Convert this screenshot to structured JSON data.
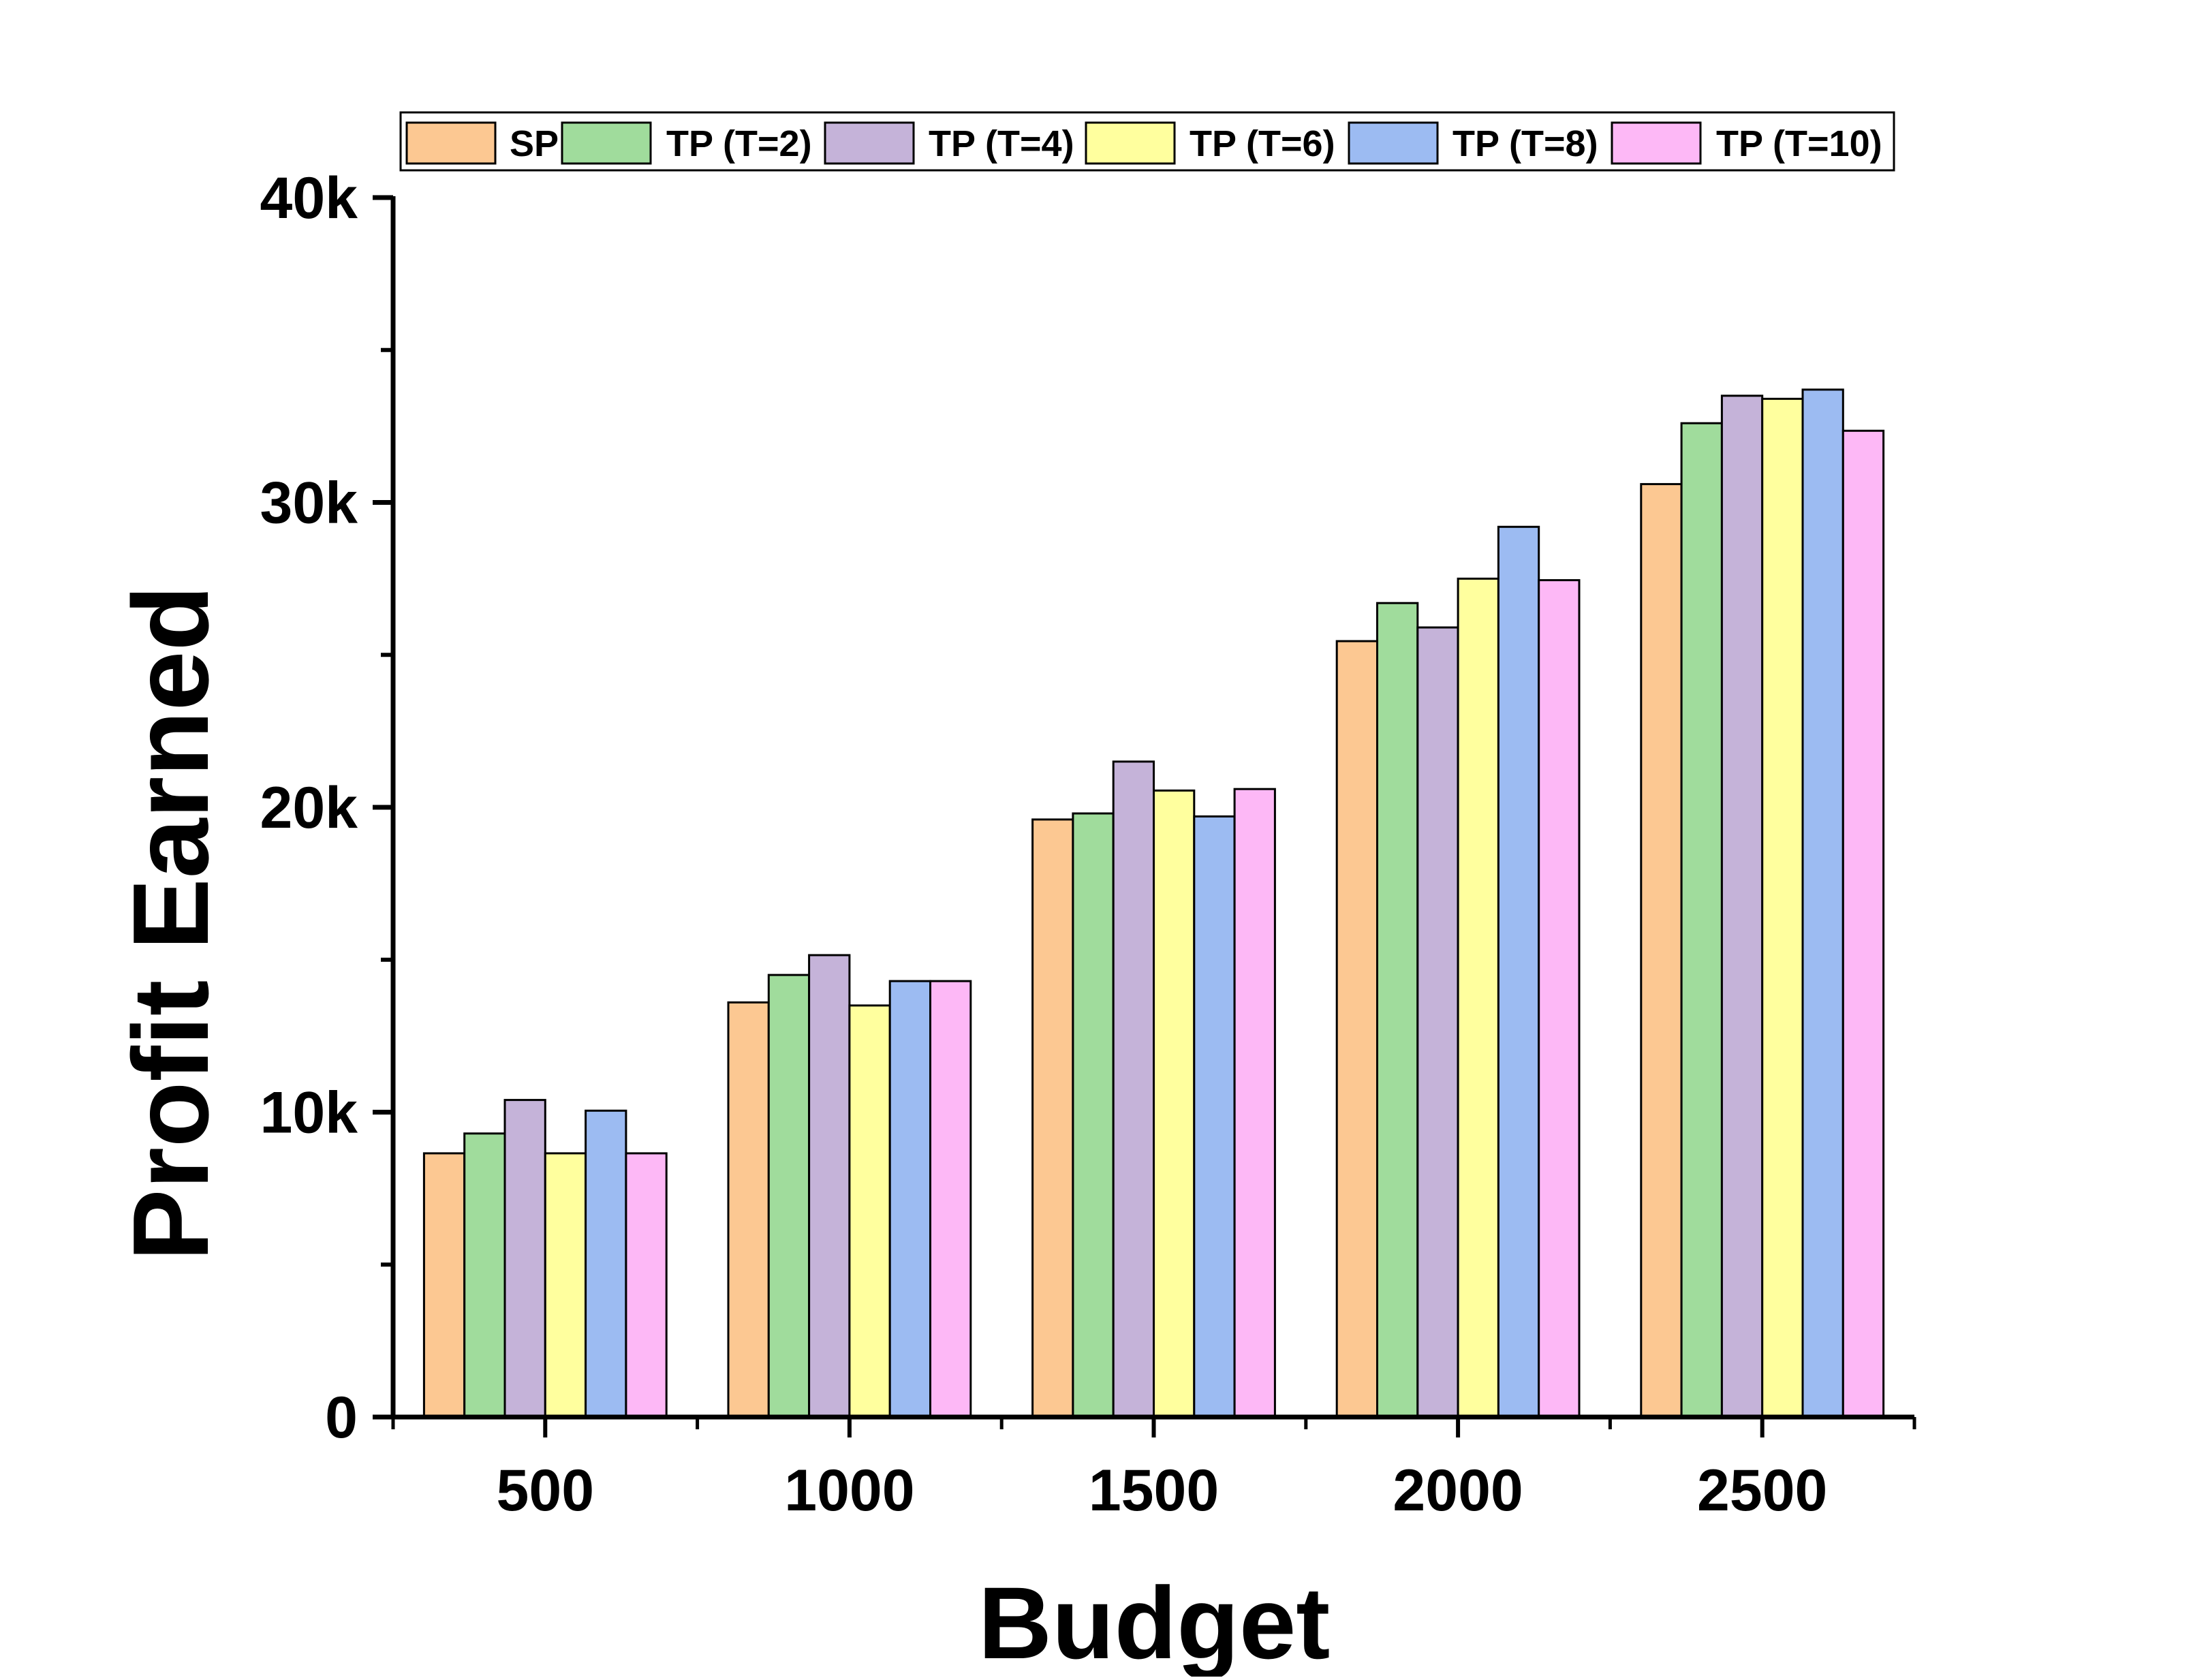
{
  "chart_data": {
    "type": "bar",
    "title": "",
    "xlabel": "Budget",
    "ylabel": "Profit Earned",
    "ylim": [
      0,
      40000
    ],
    "yticks": [
      {
        "value": 0,
        "label": "0"
      },
      {
        "value": 10000,
        "label": "10k"
      },
      {
        "value": 20000,
        "label": "20k"
      },
      {
        "value": 30000,
        "label": "30k"
      },
      {
        "value": 40000,
        "label": "40k"
      }
    ],
    "y_minor_step": 5000,
    "categories": [
      "500",
      "1000",
      "1500",
      "2000",
      "2500"
    ],
    "grid": false,
    "legend_position": "top",
    "series": [
      {
        "name": "SP",
        "color": "#FCC892",
        "values": [
          8650,
          13600,
          19600,
          25450,
          30600
        ]
      },
      {
        "name": "TP (T=2)",
        "color": "#A0DC9C",
        "values": [
          9300,
          14500,
          19800,
          26700,
          32600
        ]
      },
      {
        "name": "TP (T=4)",
        "color": "#C5B3D9",
        "values": [
          10400,
          15150,
          21500,
          25900,
          33500
        ]
      },
      {
        "name": "TP (T=6)",
        "color": "#FFFF9E",
        "values": [
          8650,
          13500,
          20550,
          27500,
          33400
        ]
      },
      {
        "name": "TP (T=8)",
        "color": "#9CBBF2",
        "values": [
          10050,
          14300,
          19700,
          29200,
          33700
        ]
      },
      {
        "name": "TP (T=10)",
        "color": "#FDB8F6",
        "values": [
          8650,
          14300,
          20600,
          27450,
          32350
        ]
      }
    ]
  }
}
